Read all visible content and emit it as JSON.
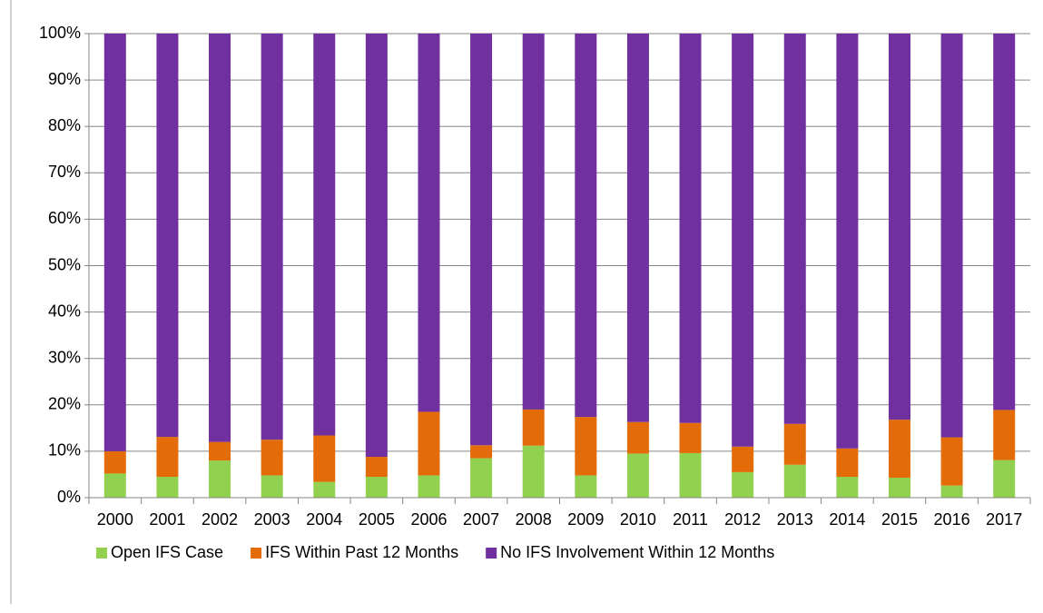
{
  "chart_data": {
    "type": "stacked_bar",
    "categories": [
      "2000",
      "2001",
      "2002",
      "2003",
      "2004",
      "2005",
      "2006",
      "2007",
      "2008",
      "2009",
      "2010",
      "2011",
      "2012",
      "2013",
      "2014",
      "2015",
      "2016",
      "2017"
    ],
    "series": [
      {
        "name": "Open IFS Case",
        "color": "#92d050",
        "values": [
          5.2,
          4.5,
          8.0,
          4.8,
          3.4,
          4.5,
          4.8,
          8.5,
          11.2,
          4.8,
          9.5,
          9.6,
          5.5,
          7.1,
          4.5,
          4.3,
          2.6,
          8.1
        ]
      },
      {
        "name": "IFS Within Past 12 Months",
        "color": "#e36c09",
        "values": [
          4.8,
          8.6,
          4.0,
          7.7,
          10.0,
          4.3,
          13.7,
          2.8,
          7.8,
          12.6,
          6.8,
          6.5,
          5.5,
          8.8,
          6.1,
          12.5,
          10.4,
          10.8
        ]
      },
      {
        "name": "No IFS Involvement Within 12 Months",
        "color": "#7030a0",
        "values": [
          90.0,
          86.9,
          88.0,
          87.5,
          86.6,
          91.2,
          81.5,
          88.7,
          81.0,
          82.6,
          83.7,
          83.9,
          89.0,
          84.1,
          89.4,
          83.2,
          87.0,
          81.1
        ]
      }
    ],
    "ylim": [
      0,
      100
    ],
    "yticks": [
      {
        "value": 0,
        "label": "0%"
      },
      {
        "value": 10,
        "label": "10%"
      },
      {
        "value": 20,
        "label": "20%"
      },
      {
        "value": 30,
        "label": "30%"
      },
      {
        "value": 40,
        "label": "40%"
      },
      {
        "value": 50,
        "label": "50%"
      },
      {
        "value": 60,
        "label": "60%"
      },
      {
        "value": 70,
        "label": "70%"
      },
      {
        "value": 80,
        "label": "80%"
      },
      {
        "value": 90,
        "label": "90%"
      },
      {
        "value": 100,
        "label": "100%"
      }
    ],
    "grid": true,
    "legend": "bottom"
  }
}
